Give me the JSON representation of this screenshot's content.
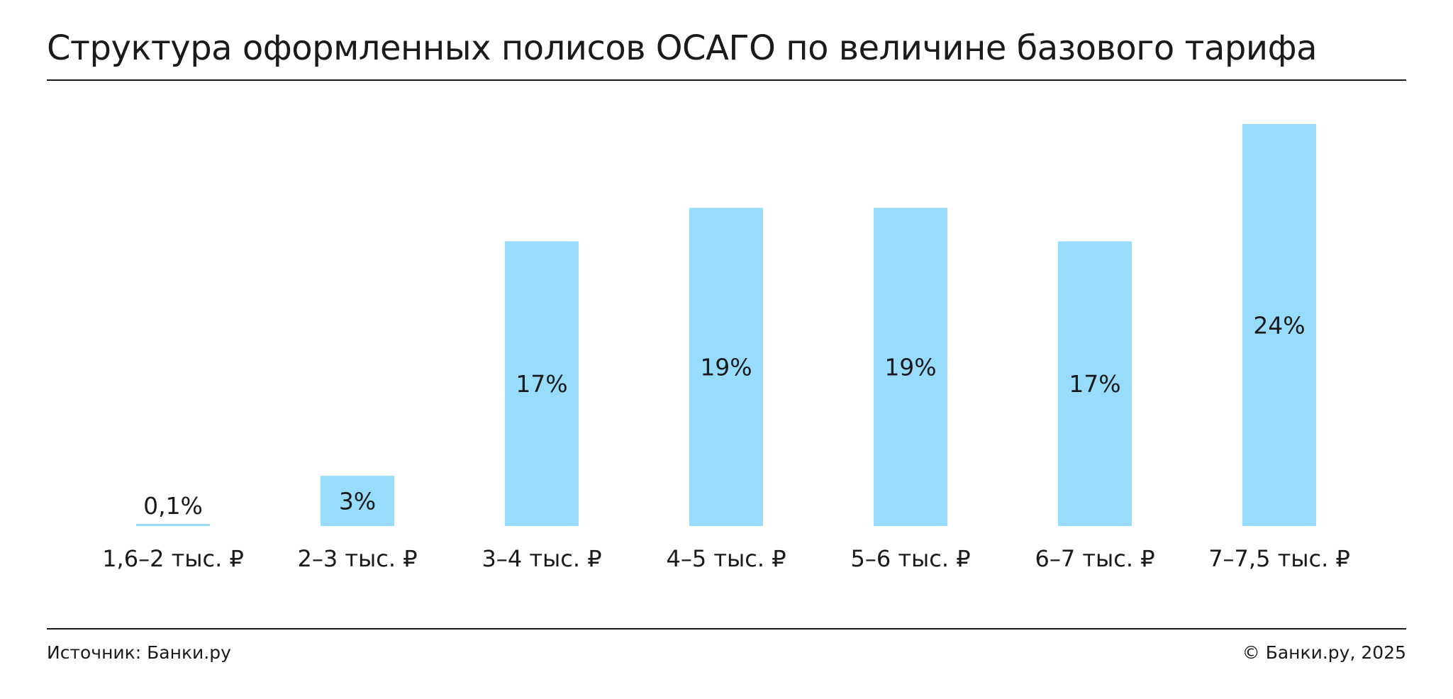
{
  "title": "Структура оформленных полисов ОСАГО по величине базового тарифа",
  "footer": {
    "source": "Источник: Банки.ру",
    "copyright": "© Банки.ру, 2025"
  },
  "colors": {
    "bar": "#97dcfc",
    "text": "#1a1a1a"
  },
  "chart_data": {
    "type": "bar",
    "title": "Структура оформленных полисов ОСАГО по величине базового тарифа",
    "xlabel": "",
    "ylabel": "",
    "categories": [
      "1,6–2 тыс. ₽",
      "2–3 тыс. ₽",
      "3–4 тыс. ₽",
      "4–5 тыс. ₽",
      "5–6 тыс. ₽",
      "6–7 тыс. ₽",
      "7–7,5 тыс. ₽"
    ],
    "values": [
      0.1,
      3,
      17,
      19,
      19,
      17,
      24
    ],
    "labels": [
      "0,1%",
      "3%",
      "17%",
      "19%",
      "19%",
      "17%",
      "24%"
    ],
    "ylim": [
      0,
      24
    ],
    "grid": false,
    "legend": "none"
  }
}
